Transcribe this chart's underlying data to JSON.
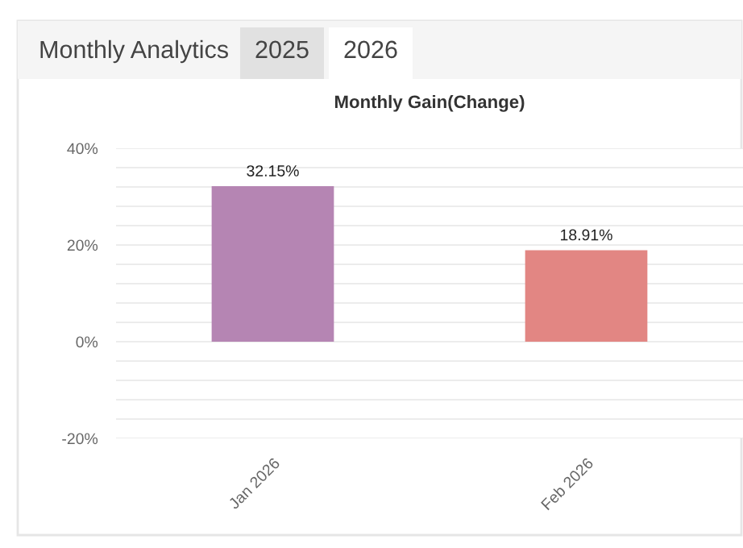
{
  "chart_data": {
    "type": "bar",
    "title": "Monthly Gain(Change)",
    "annotations": [
      "Monthly Analytics",
      "2025",
      "2026"
    ],
    "categories": [
      "Jan 2026",
      "Feb 2026"
    ],
    "values": [
      32.15,
      18.91
    ],
    "colors": [
      "#b585b3",
      "#e28683"
    ],
    "value_labels": [
      "32.15%",
      "18.91%"
    ],
    "ylim": [
      -20,
      40
    ],
    "yticks": [
      {
        "value": -20,
        "label": "-20%"
      },
      {
        "value": -16,
        "label": null
      },
      {
        "value": -12,
        "label": null
      },
      {
        "value": -8,
        "label": null
      },
      {
        "value": -4,
        "label": null
      },
      {
        "value": 0,
        "label": "0%"
      },
      {
        "value": 4,
        "label": null
      },
      {
        "value": 8,
        "label": null
      },
      {
        "value": 12,
        "label": null
      },
      {
        "value": 16,
        "label": null
      },
      {
        "value": 20,
        "label": "20%"
      },
      {
        "value": 24,
        "label": null
      },
      {
        "value": 28,
        "label": null
      },
      {
        "value": 32,
        "label": null
      },
      {
        "value": 36,
        "label": null
      },
      {
        "value": 40,
        "label": "40%"
      }
    ],
    "grid": "y",
    "legend": false
  }
}
